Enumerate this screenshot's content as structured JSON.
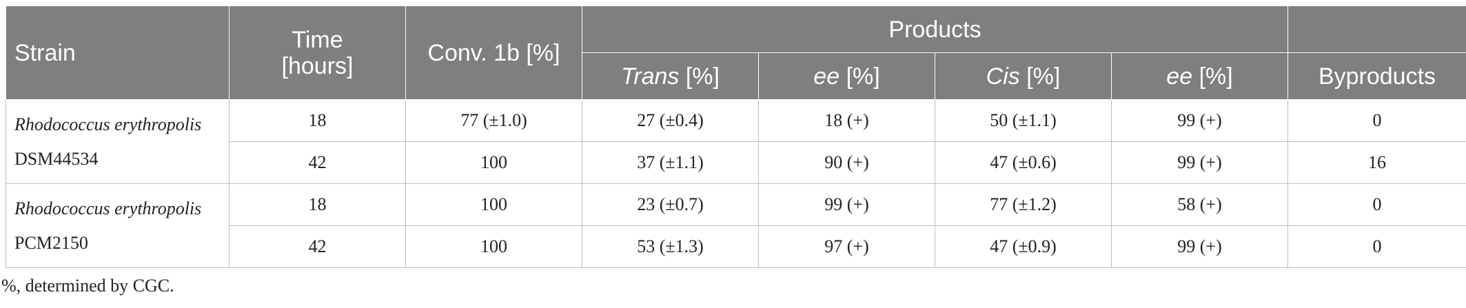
{
  "table": {
    "headers": {
      "strain": "Strain",
      "time_line1": "Time",
      "time_line2": "[hours]",
      "conv": "Conv. 1b [%]",
      "products": "Products",
      "trans_italic": "Trans",
      "trans_suffix": " [%]",
      "ee1_italic": "ee",
      "ee1_suffix": " [%]",
      "cis_italic": "Cis",
      "cis_suffix": " [%]",
      "ee2_italic": "ee",
      "ee2_suffix": " [%]",
      "byproducts": "Byproducts"
    },
    "groups": [
      {
        "strain_name": "Rhodococcus erythropolis",
        "strain_code": "DSM44534",
        "rows": [
          {
            "time": "18",
            "conv": "77 (±1.0)",
            "trans": "27 (±0.4)",
            "ee_trans": "18 (+)",
            "cis": "50 (±1.1)",
            "ee_cis": "99 (+)",
            "byproducts": "0"
          },
          {
            "time": "42",
            "conv": "100",
            "trans": "37 (±1.1)",
            "ee_trans": "90 (+)",
            "cis": "47 (±0.6)",
            "ee_cis": "99 (+)",
            "byproducts": "16"
          }
        ]
      },
      {
        "strain_name": "Rhodococcus erythropolis",
        "strain_code": "PCM2150",
        "rows": [
          {
            "time": "18",
            "conv": "100",
            "trans": "23 (±0.7)",
            "ee_trans": "99 (+)",
            "cis": "77 (±1.2)",
            "ee_cis": "58 (+)",
            "byproducts": "0"
          },
          {
            "time": "42",
            "conv": "100",
            "trans": "53 (±1.3)",
            "ee_trans": "97 (+)",
            "cis": "47 (±0.9)",
            "ee_cis": "99 (+)",
            "byproducts": "0"
          }
        ]
      }
    ]
  },
  "footnote": "%, determined by CGC.",
  "colors": {
    "header_bg": "#7f7f7f",
    "header_text": "#ffffff",
    "grid": "#bdbdbd"
  }
}
